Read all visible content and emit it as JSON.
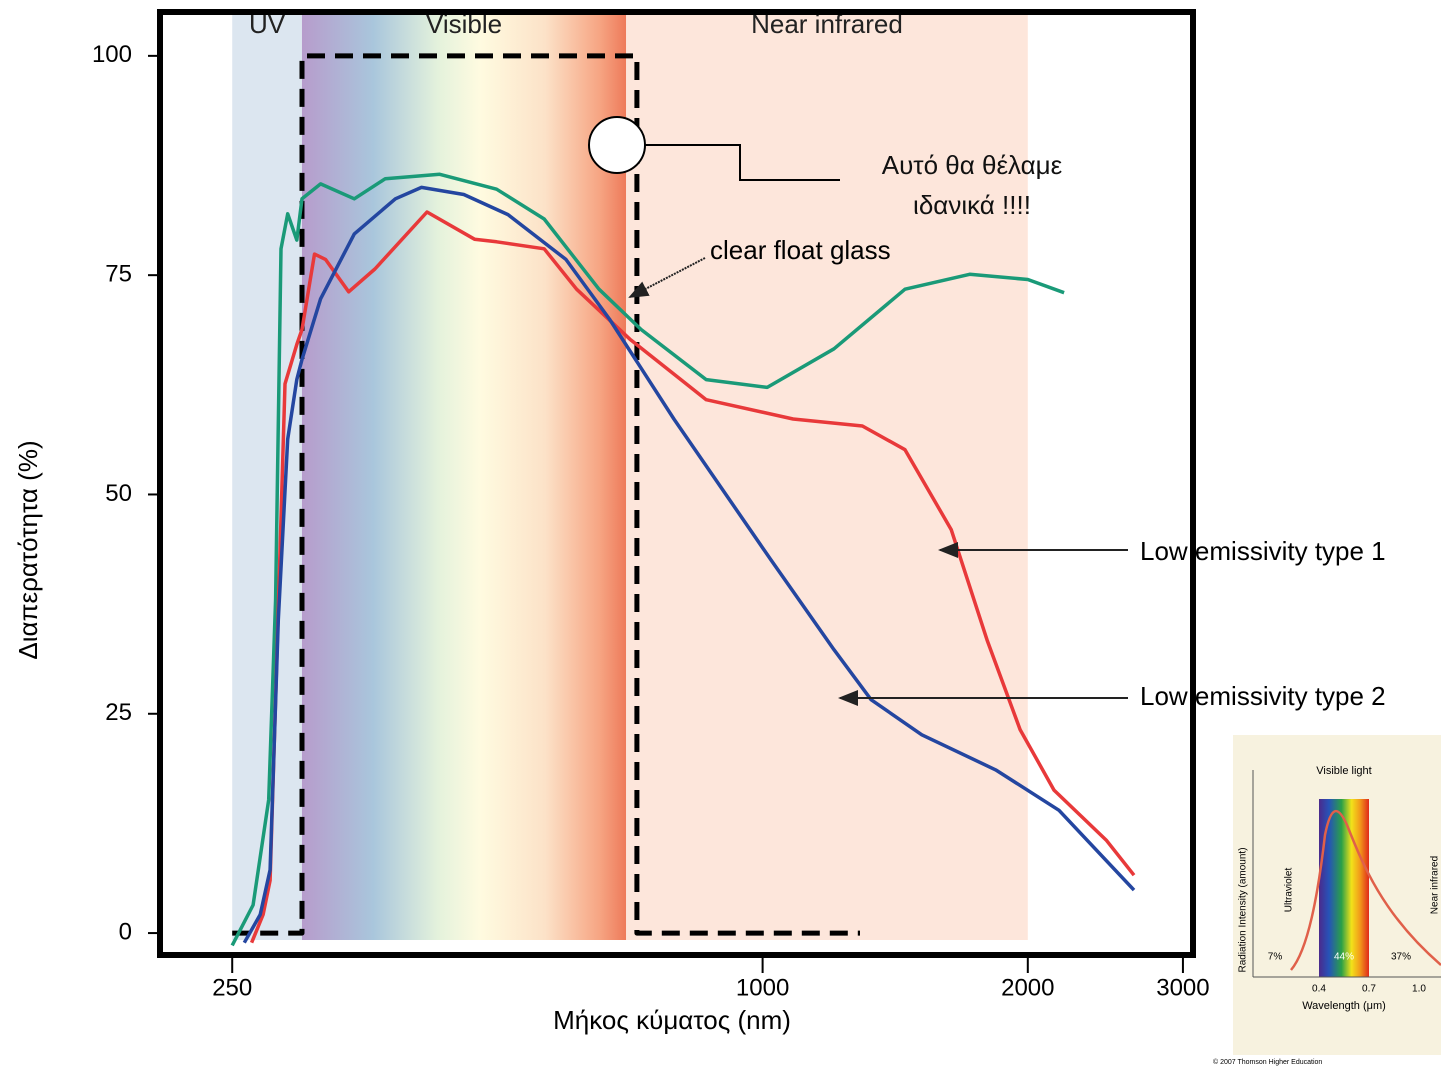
{
  "chart_data": {
    "type": "line",
    "x_label": "Μήκος κύματος (nm)",
    "y_label": "Διαπερατότητα (%)",
    "xscale": "log",
    "xlim": [
      207,
      3080
    ],
    "ylim": [
      -2.5,
      105
    ],
    "xticks": [
      250,
      1000,
      2000,
      3000
    ],
    "yticks": [
      0,
      25,
      50,
      75,
      100
    ],
    "regions": [
      {
        "label": "UV",
        "from": 250,
        "to": 300,
        "color": "#dce6f0"
      },
      {
        "label": "Visible",
        "from": 300,
        "to": 700,
        "color": "spectrum"
      },
      {
        "label": "Near infrared",
        "from": 700,
        "to": 2000,
        "color": "#fde6db"
      }
    ],
    "series": [
      {
        "name": "Αυτό θα θέλαμε ιδανικά !!!!",
        "color": "#000000",
        "dashed": true,
        "x": [
          250,
          300,
          300,
          720,
          720,
          1290
        ],
        "values": [
          0,
          0,
          100,
          100,
          0,
          0
        ]
      },
      {
        "name": "clear float glass",
        "color": "#1a9a78",
        "dashed": false,
        "x": [
          250,
          264,
          275,
          280,
          284,
          289,
          296,
          300,
          315,
          344,
          373,
          430,
          499,
          565,
          652,
          728,
          863,
          1012,
          1205,
          1451,
          1718,
          2000,
          2199
        ],
        "values": [
          -1.4,
          3.2,
          15.2,
          38,
          78,
          82,
          79,
          83.7,
          85.4,
          83.7,
          86,
          86.5,
          84.8,
          81.4,
          73.4,
          68.8,
          63.1,
          62.2,
          66.6,
          73.4,
          75.1,
          74.5,
          73
        ]
      },
      {
        "name": "Low emissivity type 1",
        "color": "#e8393a",
        "dashed": false,
        "x": [
          263,
          271,
          276,
          280,
          287,
          296,
          300,
          310,
          319,
          339,
          363,
          416,
          471,
          499,
          565,
          615,
          707,
          863,
          1083,
          1298,
          1451,
          1637,
          1798,
          1960,
          2142,
          2455,
          2640
        ],
        "values": [
          -1.1,
          2.1,
          6,
          26.6,
          62.6,
          67.1,
          68.8,
          77.4,
          76.8,
          73.1,
          75.7,
          82.2,
          79.1,
          78.8,
          78,
          73.4,
          67.7,
          60.8,
          58.6,
          57.8,
          55.1,
          46,
          33.4,
          23.2,
          16.3,
          10.6,
          6.6
        ]
      },
      {
        "name": "Low emissivity type 2",
        "color": "#2446a0",
        "dashed": false,
        "x": [
          258,
          269,
          276,
          282,
          289,
          296,
          300,
          315,
          344,
          383,
          410,
          458,
          514,
          598,
          670,
          793,
          1021,
          1205,
          1328,
          1516,
          1839,
          2170,
          2640
        ],
        "values": [
          -1.1,
          2.1,
          7.2,
          35.7,
          56.3,
          63.1,
          65.4,
          72.3,
          79.7,
          83.7,
          85,
          84.2,
          81.9,
          76.8,
          70,
          58.6,
          42.6,
          32.3,
          26.6,
          22.6,
          18.6,
          14,
          4.9
        ]
      }
    ]
  },
  "inset": {
    "title": "Visible light",
    "y_label": "Radiation Intensity (amount)",
    "left_label": "Ultraviolet",
    "right_label": "Near infrared",
    "shares": [
      "7%",
      "44%",
      "37%"
    ],
    "ticks": [
      "0.4",
      "0.7",
      "1.0"
    ],
    "x_label": "Wavelength (μm)",
    "credit": "© 2007 Thomson Higher Education"
  }
}
